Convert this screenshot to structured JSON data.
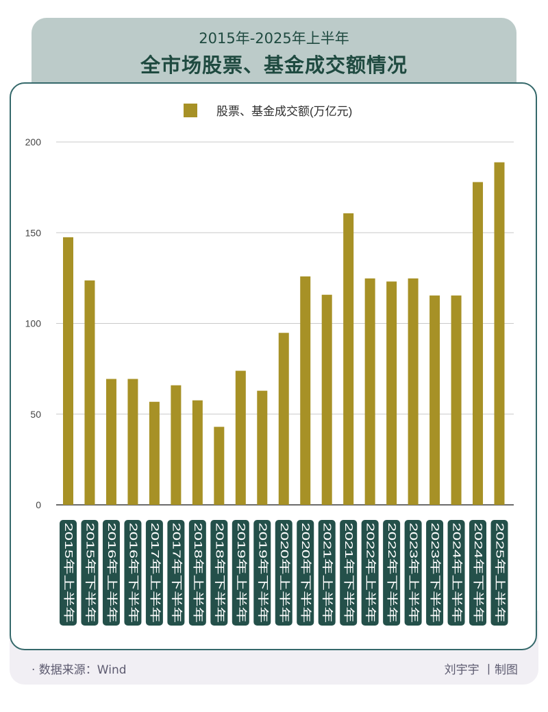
{
  "header": {
    "subtitle": "2015年-2025年上半年",
    "title": "全市场股票、基金成交额情况"
  },
  "footer": {
    "source": "· 数据来源：Wind",
    "credit": "刘宇宇 丨制图"
  },
  "colors": {
    "bar": "#a79126",
    "label_bg": "#24504a",
    "header_bg": "#bccbc9",
    "card_border": "#34686a"
  },
  "chart_data": {
    "type": "bar",
    "legend": "股票、基金成交额(万亿元)",
    "legend_position": "top-center",
    "ylim": [
      0,
      200
    ],
    "yticks": [
      0,
      50,
      100,
      150,
      200
    ],
    "grid": true,
    "categories": [
      "2015年上半年",
      "2015年下半年",
      "2016年上半年",
      "2016年下半年",
      "2017年上半年",
      "2017年下半年",
      "2018年上半年",
      "2018年下半年",
      "2019年上半年",
      "2019年下半年",
      "2020年上半年",
      "2020年下半年",
      "2021年上半年",
      "2021年下半年",
      "2022年上半年",
      "2022年下半年",
      "2023年上半年",
      "2023年下半年",
      "2024年上半年",
      "2024年下半年",
      "2025年上半年"
    ],
    "values": [
      147.5,
      123.7,
      69.4,
      69.4,
      56.8,
      65.9,
      57.6,
      43,
      73.9,
      62.9,
      94.8,
      125.9,
      115.8,
      160.7,
      124.8,
      123.1,
      124.8,
      115.4,
      115.4,
      177.9,
      188.8
    ]
  }
}
